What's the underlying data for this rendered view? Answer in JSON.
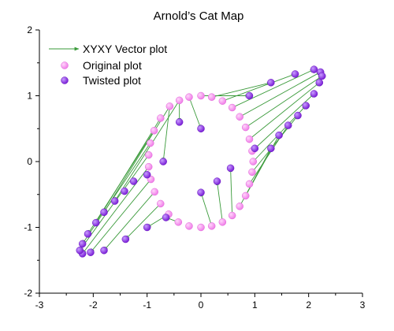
{
  "chart_data": {
    "type": "scatter",
    "title": "Arnold’s Cat Map",
    "xlabel": "",
    "ylabel": "",
    "xlim": [
      -3,
      3
    ],
    "ylim": [
      -2,
      2
    ],
    "x_ticks": [
      -3,
      -2,
      -1,
      0,
      1,
      2,
      3
    ],
    "y_ticks": [
      -2,
      -1,
      0,
      1,
      2
    ],
    "x_tick_labels": [
      "-3",
      "-2",
      "-1",
      "0",
      "1",
      "2",
      "3"
    ],
    "y_tick_labels": [
      "-2",
      "-1",
      "0",
      "1",
      "2"
    ],
    "grid": false,
    "legend_position": "top-left",
    "legend": [
      {
        "label": "XYXY Vector plot",
        "kind": "vector"
      },
      {
        "label": "Original plot",
        "kind": "original"
      },
      {
        "label": "Twisted plot",
        "kind": "twisted"
      }
    ],
    "colors": {
      "vector": "#3a9a3a",
      "original": "#f07ee8",
      "twisted": "#8a2be2",
      "axis": "#000000"
    },
    "series": [
      {
        "name": "Original plot",
        "points": [
          [
            -0.22,
            0.98
          ],
          [
            0.0,
            1.0
          ],
          [
            0.2,
            0.98
          ],
          [
            0.4,
            0.92
          ],
          [
            0.58,
            0.82
          ],
          [
            0.72,
            0.68
          ],
          [
            0.83,
            0.52
          ],
          [
            0.9,
            0.34
          ],
          [
            0.95,
            0.16
          ],
          [
            0.97,
            0.0
          ],
          [
            0.95,
            -0.16
          ],
          [
            0.9,
            -0.34
          ],
          [
            0.83,
            -0.52
          ],
          [
            0.72,
            -0.68
          ],
          [
            0.58,
            -0.82
          ],
          [
            0.4,
            -0.92
          ],
          [
            0.2,
            -0.98
          ],
          [
            0.0,
            -1.0
          ],
          [
            -0.22,
            -0.98
          ],
          [
            -0.42,
            -0.92
          ],
          [
            -0.6,
            -0.8
          ],
          [
            -0.75,
            -0.64
          ],
          [
            -0.86,
            -0.46
          ],
          [
            -0.93,
            -0.27
          ],
          [
            -0.97,
            -0.08
          ],
          [
            -0.97,
            0.1
          ],
          [
            -0.94,
            0.28
          ],
          [
            -0.87,
            0.47
          ],
          [
            -0.75,
            0.66
          ],
          [
            -0.58,
            0.84
          ],
          [
            -0.4,
            0.93
          ]
        ]
      },
      {
        "name": "Twisted plot",
        "points": [
          [
            -0.4,
            0.6
          ],
          [
            0.0,
            0.5
          ],
          [
            0.9,
            1.0
          ],
          [
            1.3,
            1.2
          ],
          [
            1.75,
            1.33
          ],
          [
            2.1,
            1.4
          ],
          [
            2.22,
            1.36
          ],
          [
            2.25,
            1.3
          ],
          [
            2.2,
            1.2
          ],
          [
            2.1,
            1.03
          ],
          [
            1.95,
            0.85
          ],
          [
            1.8,
            0.7
          ],
          [
            1.62,
            0.55
          ],
          [
            1.45,
            0.4
          ],
          [
            1.3,
            0.2
          ],
          [
            1.0,
            0.2
          ],
          [
            0.55,
            -0.1
          ],
          [
            0.3,
            -0.3
          ],
          [
            0.0,
            -0.47
          ],
          [
            -0.65,
            -0.85
          ],
          [
            -1.0,
            -1.0
          ],
          [
            -1.4,
            -1.18
          ],
          [
            -1.8,
            -1.35
          ],
          [
            -2.05,
            -1.38
          ],
          [
            -2.2,
            -1.4
          ],
          [
            -2.25,
            -1.35
          ],
          [
            -2.2,
            -1.25
          ],
          [
            -2.1,
            -1.1
          ],
          [
            -1.95,
            -0.93
          ],
          [
            -1.8,
            -0.77
          ],
          [
            -1.6,
            -0.6
          ],
          [
            -1.42,
            -0.45
          ],
          [
            -1.25,
            -0.3
          ],
          [
            -1.0,
            -0.2
          ],
          [
            -0.7,
            0.0
          ]
        ]
      }
    ],
    "vectors": [
      [
        -0.22,
        0.98,
        0.0,
        0.5
      ],
      [
        0.0,
        1.0,
        0.9,
        1.0
      ],
      [
        0.2,
        0.98,
        1.3,
        1.2
      ],
      [
        0.4,
        0.92,
        1.75,
        1.33
      ],
      [
        0.58,
        0.82,
        2.1,
        1.4
      ],
      [
        0.72,
        0.68,
        2.22,
        1.36
      ],
      [
        0.83,
        0.52,
        2.25,
        1.3
      ],
      [
        0.9,
        0.34,
        2.2,
        1.2
      ],
      [
        0.95,
        0.16,
        2.1,
        1.03
      ],
      [
        0.97,
        0.0,
        1.95,
        0.85
      ],
      [
        0.95,
        -0.16,
        1.8,
        0.7
      ],
      [
        0.9,
        -0.34,
        1.62,
        0.55
      ],
      [
        0.83,
        -0.52,
        1.45,
        0.4
      ],
      [
        0.72,
        -0.68,
        1.3,
        0.2
      ],
      [
        0.58,
        -0.82,
        0.55,
        -0.1
      ],
      [
        0.4,
        -0.92,
        0.3,
        -0.3
      ],
      [
        0.2,
        -0.98,
        0.0,
        -0.47
      ],
      [
        -0.42,
        -0.92,
        -0.65,
        -0.85
      ],
      [
        -0.6,
        -0.8,
        -1.0,
        -1.0
      ],
      [
        -0.75,
        -0.64,
        -1.4,
        -1.18
      ],
      [
        -0.86,
        -0.46,
        -1.8,
        -1.35
      ],
      [
        -0.93,
        -0.27,
        -2.05,
        -1.38
      ],
      [
        -0.97,
        -0.08,
        -2.2,
        -1.4
      ],
      [
        -0.97,
        0.1,
        -2.25,
        -1.35
      ],
      [
        -0.94,
        0.28,
        -2.2,
        -1.25
      ],
      [
        -0.87,
        0.47,
        -2.1,
        -1.1
      ],
      [
        -0.75,
        0.66,
        -1.95,
        -0.93
      ],
      [
        -0.58,
        0.84,
        -1.8,
        -0.77
      ],
      [
        -0.4,
        0.93,
        -1.6,
        -0.6
      ],
      [
        -0.58,
        0.84,
        -0.7,
        0.0
      ],
      [
        -0.4,
        0.93,
        -0.4,
        0.6
      ]
    ]
  }
}
